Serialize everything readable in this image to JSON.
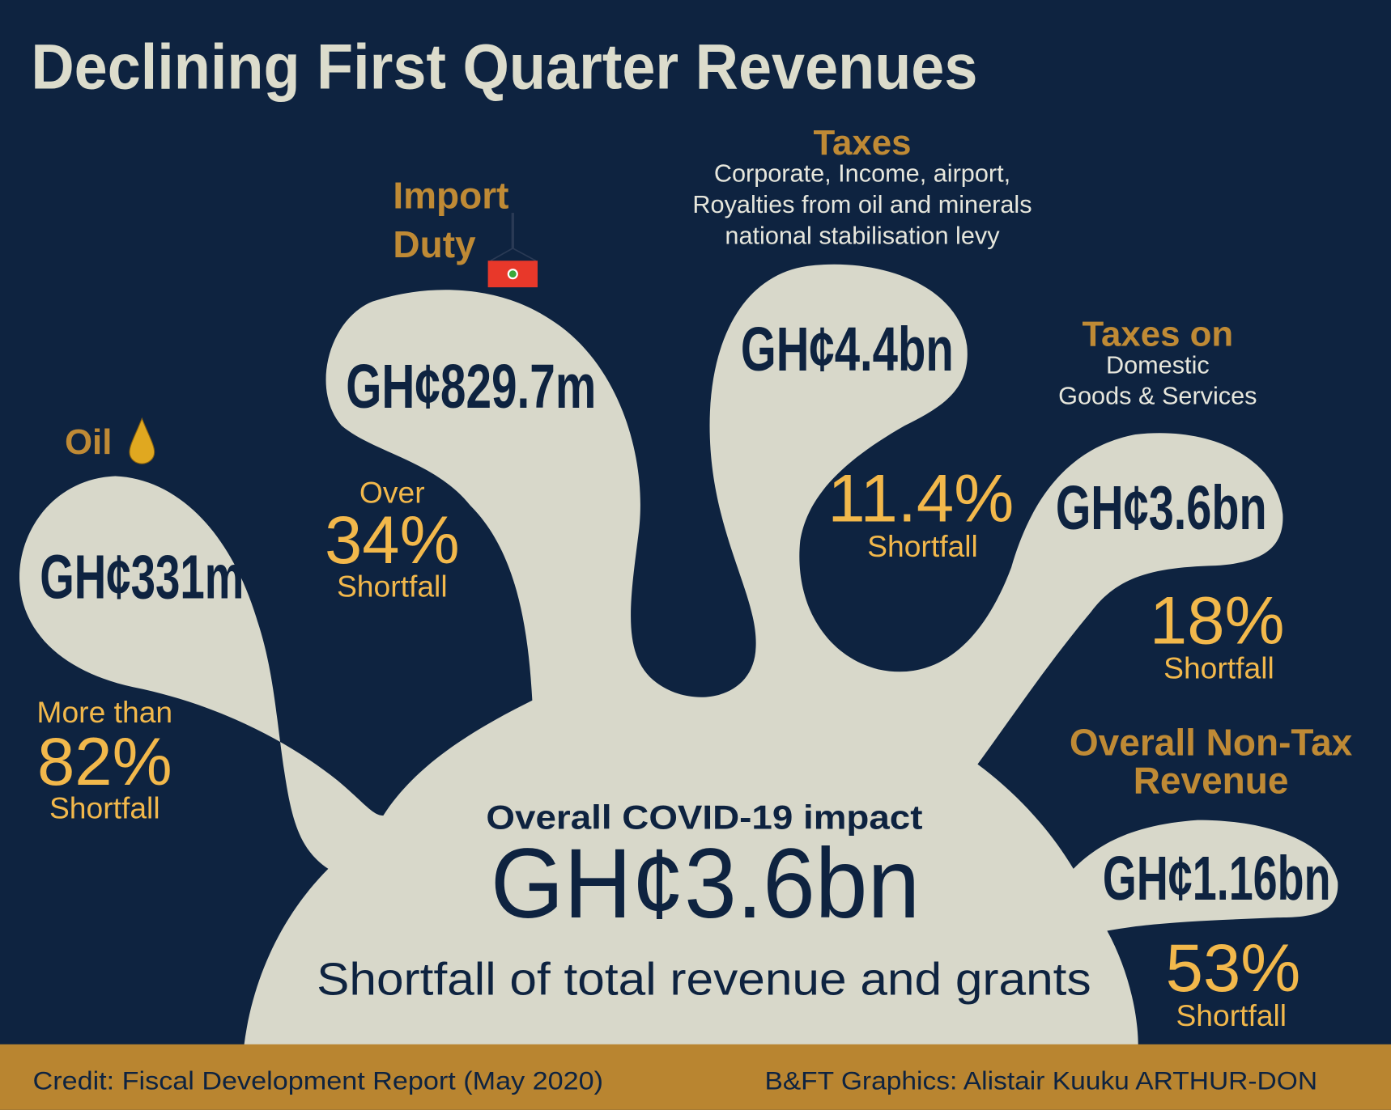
{
  "title": "Declining First Quarter Revenues",
  "colors": {
    "background": "#0e2340",
    "blob": "#d8d8ca",
    "accent_gold": "#bf8a35",
    "percent_yellow": "#f2b84b",
    "footer": "#b98530"
  },
  "oil": {
    "label": "Oil",
    "icon": "oil-drop-icon",
    "amount": "GH¢331m",
    "prefix": "More than",
    "percent": "82%",
    "suffix": "Shortfall"
  },
  "import_duty": {
    "label_line1": "Import",
    "label_line2": "Duty",
    "icon": "shipping-container-icon",
    "amount": "GH¢829.7m",
    "prefix": "Over",
    "percent": "34%",
    "suffix": "Shortfall"
  },
  "taxes": {
    "label": "Taxes",
    "description": [
      "Corporate, Income, airport,",
      "Royalties from oil and minerals",
      "national stabilisation levy"
    ],
    "amount": "GH¢4.4bn",
    "percent": "11.4%",
    "suffix": "Shortfall"
  },
  "domestic": {
    "label": "Taxes on",
    "sub_line1": "Domestic",
    "sub_line2": "Goods & Services",
    "amount": "GH¢3.6bn",
    "percent": "18%",
    "suffix": "Shortfall"
  },
  "non_tax": {
    "label_line1": "Overall Non-Tax",
    "label_line2": "Revenue",
    "amount": "GH¢1.16bn",
    "percent": "53%",
    "suffix": "Shortfall"
  },
  "overall": {
    "heading": "Overall COVID-19 impact",
    "amount": "GH¢3.6bn",
    "caption": "Shortfall of total revenue and grants"
  },
  "footer": {
    "credit": "Credit: Fiscal Development Report (May 2020)",
    "graphics": "B&FT Graphics: Alistair Kuuku ARTHUR-DON"
  }
}
